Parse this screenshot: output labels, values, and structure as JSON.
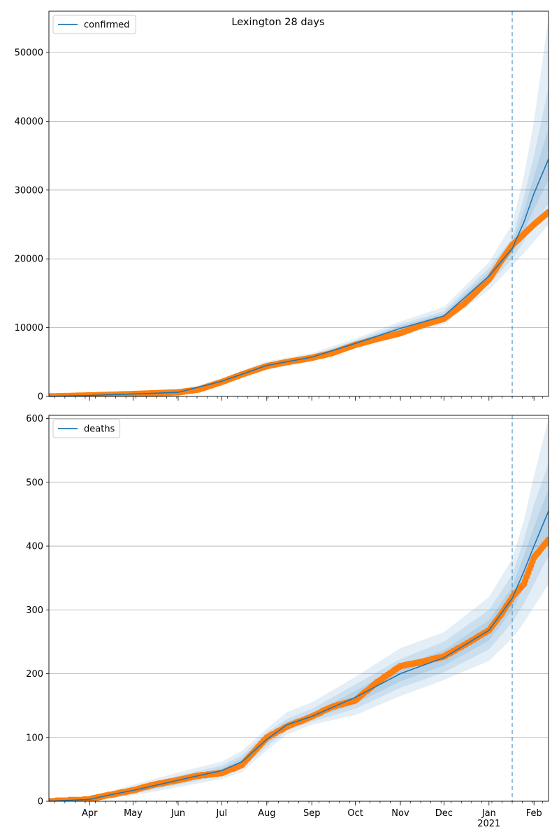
{
  "title": "Lexington 28 days",
  "colors": {
    "model_line": "#1f77b4",
    "observed": "#ff7f0e",
    "band": "#1f77b4",
    "grid": "#b0b0b0"
  },
  "x_ticks": [
    {
      "date": "2020-04-01",
      "label": "Apr"
    },
    {
      "date": "2020-05-01",
      "label": "May"
    },
    {
      "date": "2020-06-01",
      "label": "Jun"
    },
    {
      "date": "2020-07-01",
      "label": "Jul"
    },
    {
      "date": "2020-08-01",
      "label": "Aug"
    },
    {
      "date": "2020-09-01",
      "label": "Sep"
    },
    {
      "date": "2020-10-01",
      "label": "Oct"
    },
    {
      "date": "2020-11-01",
      "label": "Nov"
    },
    {
      "date": "2020-12-01",
      "label": "Dec"
    },
    {
      "date": "2021-01-01",
      "label": "Jan"
    },
    {
      "date": "2021-02-01",
      "label": "Feb"
    }
  ],
  "x_year_label": "2021",
  "chart_data": [
    {
      "type": "line",
      "legend": "confirmed",
      "legend_position": "upper left",
      "grid": "horizontal",
      "xlim": [
        "2020-03-04",
        "2021-02-11"
      ],
      "ylim": [
        0,
        56000
      ],
      "yticks": [
        0,
        10000,
        20000,
        30000,
        40000,
        50000
      ],
      "forecast_start": "2021-01-17",
      "series": [
        {
          "name": "confirmed",
          "kind": "model",
          "x": [
            "2020-03-04",
            "2020-04-01",
            "2020-05-01",
            "2020-06-01",
            "2020-07-01",
            "2020-08-01",
            "2020-09-01",
            "2020-10-01",
            "2020-11-01",
            "2020-12-01",
            "2021-01-01",
            "2021-01-17",
            "2021-01-25",
            "2021-02-01",
            "2021-02-11"
          ],
          "y": [
            0,
            150,
            350,
            600,
            2200,
            4500,
            5700,
            7700,
            9900,
            11700,
            17500,
            21500,
            25300,
            29500,
            34500
          ]
        },
        {
          "name": "observed",
          "kind": "observed",
          "x": [
            "2020-03-04",
            "2020-04-01",
            "2020-05-01",
            "2020-06-01",
            "2020-06-15",
            "2020-07-01",
            "2020-07-15",
            "2020-08-01",
            "2020-08-15",
            "2020-09-01",
            "2020-09-15",
            "2020-10-01",
            "2020-10-15",
            "2020-11-01",
            "2020-11-15",
            "2020-12-01",
            "2020-12-15",
            "2021-01-01",
            "2021-01-10",
            "2021-01-17",
            "2021-01-25",
            "2021-02-01",
            "2021-02-11"
          ],
          "y": [
            0,
            150,
            350,
            600,
            1000,
            2100,
            3200,
            4400,
            5000,
            5600,
            6300,
            7500,
            8300,
            9200,
            10300,
            11300,
            13500,
            17000,
            19900,
            22000,
            23600,
            25000,
            26800
          ]
        }
      ],
      "bands": [
        {
          "lower": [
            0,
            100,
            280,
            480,
            1800,
            3900,
            5100,
            7000,
            8900,
            10500,
            15500,
            19000,
            20800,
            22500,
            25000
          ],
          "upper": [
            0,
            200,
            420,
            720,
            2600,
            5100,
            6300,
            8400,
            10900,
            13000,
            19500,
            25000,
            32000,
            40000,
            55000
          ]
        },
        {
          "lower": [
            0,
            120,
            310,
            530,
            1950,
            4150,
            5350,
            7300,
            9300,
            11000,
            16300,
            20000,
            22500,
            25000,
            28000
          ],
          "upper": [
            0,
            180,
            390,
            670,
            2450,
            4850,
            6050,
            8100,
            10500,
            12400,
            18700,
            23000,
            29000,
            35000,
            45000
          ]
        },
        {
          "lower": [
            0,
            135,
            330,
            565,
            2080,
            4330,
            5530,
            7500,
            9600,
            11350,
            16900,
            20800,
            24000,
            27200,
            31500
          ],
          "upper": [
            0,
            165,
            370,
            635,
            2320,
            4670,
            5870,
            7900,
            10200,
            12050,
            18100,
            22200,
            27000,
            32000,
            39000
          ]
        }
      ]
    },
    {
      "type": "line",
      "legend": "deaths",
      "legend_position": "upper left",
      "grid": "horizontal",
      "xlim": [
        "2020-03-04",
        "2021-02-11"
      ],
      "ylim": [
        0,
        605
      ],
      "yticks": [
        0,
        100,
        200,
        300,
        400,
        500,
        600
      ],
      "forecast_start": "2021-01-17",
      "series": [
        {
          "name": "deaths",
          "kind": "model",
          "x": [
            "2020-03-04",
            "2020-04-01",
            "2020-04-15",
            "2020-05-01",
            "2020-06-01",
            "2020-07-01",
            "2020-07-15",
            "2020-08-01",
            "2020-08-15",
            "2020-09-01",
            "2020-10-01",
            "2020-11-01",
            "2020-12-01",
            "2021-01-01",
            "2021-01-17",
            "2021-01-25",
            "2021-02-01",
            "2021-02-11"
          ],
          "y": [
            0,
            3,
            10,
            17,
            33,
            48,
            62,
            97,
            120,
            133,
            163,
            200,
            225,
            268,
            318,
            360,
            400,
            455
          ]
        },
        {
          "name": "observed",
          "kind": "observed",
          "x": [
            "2020-03-04",
            "2020-04-01",
            "2020-04-15",
            "2020-05-01",
            "2020-05-15",
            "2020-06-01",
            "2020-06-15",
            "2020-07-01",
            "2020-07-15",
            "2020-08-01",
            "2020-08-15",
            "2020-09-01",
            "2020-09-15",
            "2020-10-01",
            "2020-10-15",
            "2020-11-01",
            "2020-11-15",
            "2020-12-01",
            "2020-12-15",
            "2021-01-01",
            "2021-01-10",
            "2021-01-17",
            "2021-01-25",
            "2021-02-01",
            "2021-02-11"
          ],
          "y": [
            0,
            3,
            10,
            17,
            26,
            33,
            40,
            44,
            57,
            100,
            117,
            133,
            148,
            158,
            185,
            212,
            218,
            227,
            245,
            268,
            295,
            320,
            340,
            382,
            410
          ]
        }
      ],
      "bands": [
        {
          "lower": [
            0,
            1,
            5,
            9,
            22,
            35,
            46,
            80,
            105,
            120,
            135,
            165,
            190,
            220,
            255,
            280,
            305,
            340
          ],
          "upper": [
            0,
            5,
            15,
            26,
            45,
            62,
            79,
            114,
            140,
            155,
            195,
            240,
            265,
            320,
            380,
            440,
            510,
            600
          ]
        },
        {
          "lower": [
            0,
            2,
            7,
            12,
            26,
            40,
            52,
            86,
            111,
            125,
            145,
            178,
            202,
            238,
            280,
            310,
            340,
            385
          ],
          "upper": [
            0,
            4,
            13,
            22,
            40,
            56,
            72,
            108,
            129,
            145,
            183,
            223,
            250,
            300,
            355,
            410,
            465,
            530
          ]
        },
        {
          "lower": [
            0,
            2.5,
            8.5,
            14.5,
            29,
            44,
            57,
            91,
            115,
            129,
            153,
            188,
            213,
            252,
            300,
            335,
            370,
            420
          ],
          "upper": [
            0,
            3.5,
            11.5,
            19.5,
            37,
            52,
            67,
            103,
            125,
            137,
            173,
            212,
            237,
            284,
            336,
            385,
            430,
            490
          ]
        }
      ]
    }
  ]
}
